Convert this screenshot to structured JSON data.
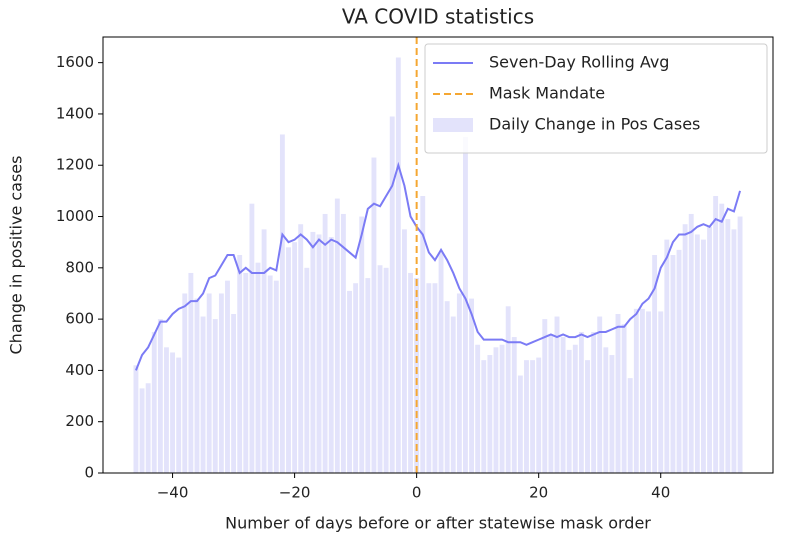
{
  "chart_data": {
    "type": "bar-line",
    "title": "VA COVID statistics",
    "xlabel": "Number of days before or after statewise mask order",
    "ylabel": "Change in positive cases",
    "x": [
      -46,
      -45,
      -44,
      -43,
      -42,
      -41,
      -40,
      -39,
      -38,
      -37,
      -36,
      -35,
      -34,
      -33,
      -32,
      -31,
      -30,
      -29,
      -28,
      -27,
      -26,
      -25,
      -24,
      -23,
      -22,
      -21,
      -20,
      -19,
      -18,
      -17,
      -16,
      -15,
      -14,
      -13,
      -12,
      -11,
      -10,
      -9,
      -8,
      -7,
      -6,
      -5,
      -4,
      -3,
      -2,
      -1,
      0,
      1,
      2,
      3,
      4,
      5,
      6,
      7,
      8,
      9,
      10,
      11,
      12,
      13,
      14,
      15,
      16,
      17,
      18,
      19,
      20,
      21,
      22,
      23,
      24,
      25,
      26,
      27,
      28,
      29,
      30,
      31,
      32,
      33,
      34,
      35,
      36,
      37,
      38,
      39,
      40,
      41,
      42,
      43,
      44,
      45,
      46,
      47,
      48,
      49,
      50,
      51,
      52,
      53
    ],
    "series": [
      {
        "name": "Seven-Day Rolling Avg",
        "type": "line",
        "color": "#7b7bf5",
        "values": [
          400,
          460,
          490,
          540,
          590,
          590,
          620,
          640,
          650,
          670,
          670,
          700,
          760,
          770,
          810,
          850,
          850,
          780,
          800,
          780,
          780,
          780,
          800,
          790,
          930,
          900,
          910,
          930,
          910,
          880,
          910,
          890,
          910,
          900,
          880,
          860,
          840,
          930,
          1030,
          1050,
          1040,
          1080,
          1120,
          1200,
          1120,
          1000,
          960,
          930,
          860,
          830,
          870,
          830,
          780,
          720,
          680,
          620,
          550,
          520,
          520,
          520,
          520,
          510,
          510,
          510,
          500,
          510,
          520,
          530,
          540,
          530,
          540,
          530,
          530,
          540,
          530,
          540,
          550,
          550,
          560,
          570,
          570,
          600,
          620,
          660,
          680,
          720,
          800,
          840,
          900,
          930,
          930,
          940,
          960,
          970,
          960,
          990,
          980,
          1030,
          1020,
          1100
        ]
      },
      {
        "name": "Daily Change in Pos Cases",
        "type": "bar",
        "color": "#e3e3fb",
        "values": [
          420,
          330,
          350,
          550,
          600,
          490,
          470,
          450,
          700,
          780,
          680,
          610,
          700,
          600,
          700,
          750,
          620,
          850,
          780,
          1050,
          820,
          950,
          770,
          750,
          1320,
          880,
          900,
          970,
          800,
          940,
          930,
          1010,
          920,
          1070,
          1010,
          710,
          740,
          1000,
          760,
          1230,
          810,
          800,
          1390,
          1620,
          950,
          780,
          760,
          1080,
          740,
          740,
          860,
          670,
          610,
          700,
          1310,
          680,
          500,
          440,
          460,
          490,
          500,
          650,
          530,
          380,
          440,
          440,
          450,
          600,
          540,
          610,
          530,
          480,
          500,
          550,
          440,
          550,
          610,
          490,
          460,
          620,
          580,
          370,
          640,
          640,
          630,
          850,
          630,
          910,
          850,
          870,
          970,
          1010,
          930,
          910,
          960,
          1080,
          1050,
          990,
          950,
          1000
        ]
      }
    ],
    "vlines": [
      {
        "name": "Mask Mandate",
        "x": 0,
        "color": "#f5a732",
        "style": "dashed"
      }
    ],
    "legend": "upper right",
    "xlim": [
      -51.4,
      58.4
    ],
    "ylim": [
      0,
      1700
    ],
    "xticks": [
      {
        "value": -40,
        "label": "−40"
      },
      {
        "value": -20,
        "label": "−20"
      },
      0,
      20,
      40
    ],
    "yticks": [
      0,
      200,
      400,
      600,
      800,
      1000,
      1200,
      1400,
      1600
    ]
  }
}
